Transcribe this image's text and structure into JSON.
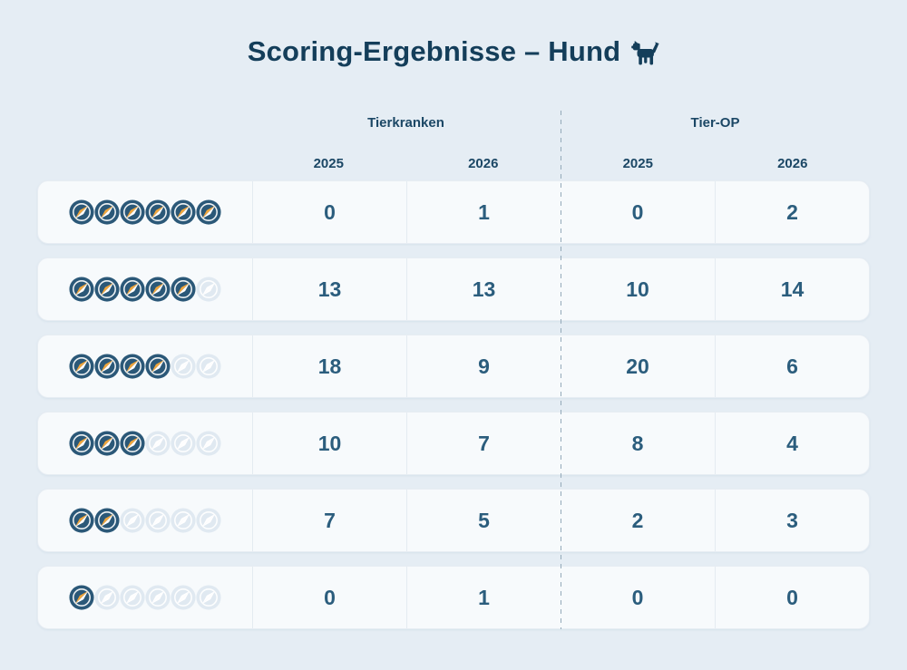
{
  "title": {
    "text": "Scoring-Ergebnisse – Hund",
    "icon": "dog-icon"
  },
  "table": {
    "score_icon": "compass-icon",
    "max_score": 6,
    "column_groups": [
      {
        "label": "Tierkranken",
        "years": [
          "2025",
          "2026"
        ]
      },
      {
        "label": "Tier-OP",
        "years": [
          "2025",
          "2026"
        ]
      }
    ],
    "rows": [
      {
        "score": 6,
        "values": [
          "0",
          "1",
          "0",
          "2"
        ]
      },
      {
        "score": 5,
        "values": [
          "13",
          "13",
          "10",
          "14"
        ]
      },
      {
        "score": 4,
        "values": [
          "18",
          "9",
          "20",
          "6"
        ]
      },
      {
        "score": 3,
        "values": [
          "10",
          "7",
          "8",
          "4"
        ]
      },
      {
        "score": 2,
        "values": [
          "7",
          "5",
          "2",
          "3"
        ]
      },
      {
        "score": 1,
        "values": [
          "0",
          "1",
          "0",
          "0"
        ]
      }
    ]
  },
  "chart_data": {
    "type": "table",
    "title": "Scoring-Ergebnisse – Hund",
    "row_label_type": "score as number of filled compass icons (max 6)",
    "row_scores": [
      6,
      5,
      4,
      3,
      2,
      1
    ],
    "columns": [
      "Tierkranken 2025",
      "Tierkranken 2026",
      "Tier-OP 2025",
      "Tier-OP 2026"
    ],
    "values": [
      [
        0,
        1,
        0,
        2
      ],
      [
        13,
        13,
        10,
        14
      ],
      [
        18,
        9,
        20,
        6
      ],
      [
        10,
        7,
        8,
        4
      ],
      [
        7,
        5,
        2,
        3
      ],
      [
        0,
        1,
        0,
        0
      ]
    ]
  },
  "colors": {
    "page_background": "#E5EDF4",
    "card_background": "#F7FAFC",
    "card_border": "#E7EDF3",
    "cell_divider": "#E4EBF1",
    "dashed_divider": "#93A9B9",
    "title_text": "#143E5A",
    "header_text": "#1B4765",
    "number_text": "#2B5D7D",
    "compass_navy": "#2B5878",
    "compass_gold": "#F0A63C",
    "compass_ghost_disc": "#E0E9F1",
    "compass_ghost_needle": "#FFFFFF"
  }
}
